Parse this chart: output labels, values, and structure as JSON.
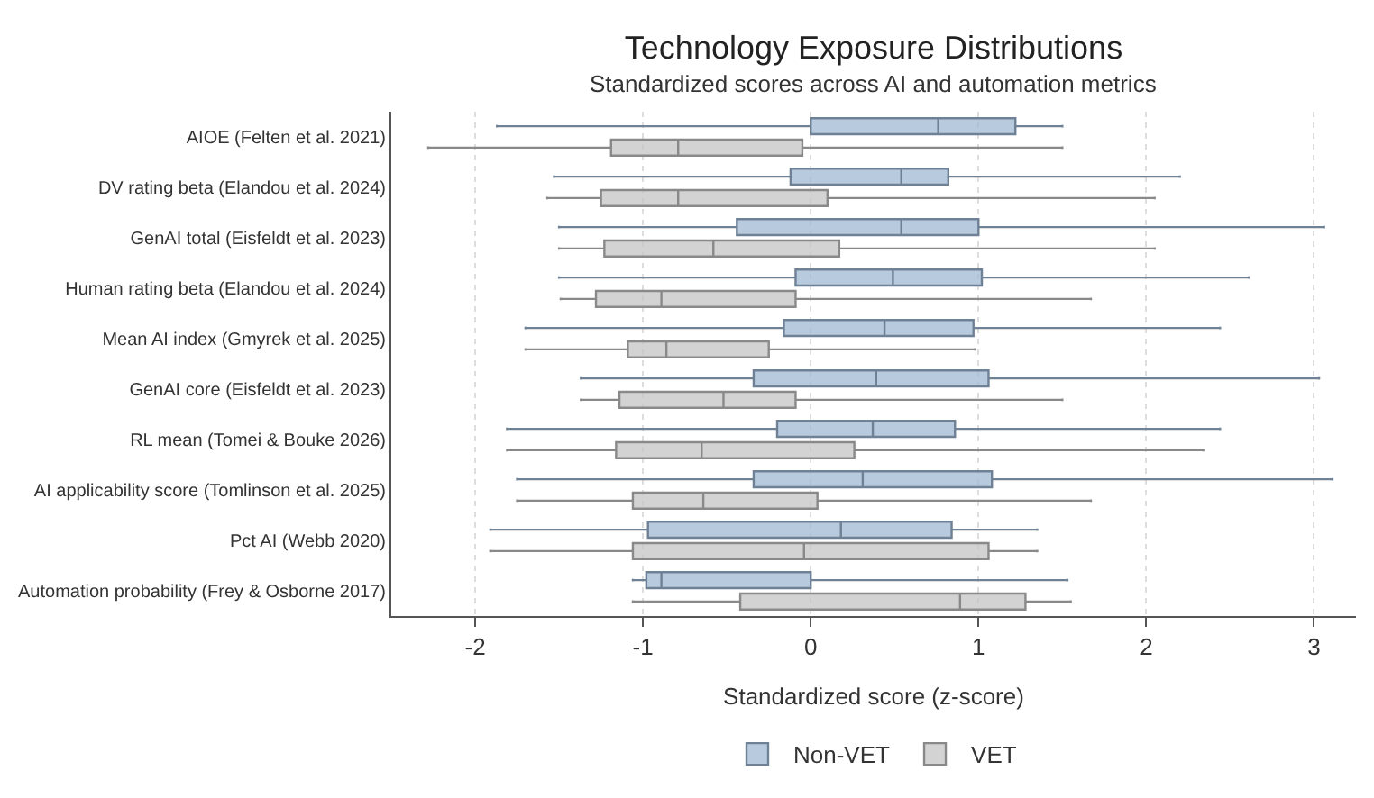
{
  "chart_data": {
    "type": "box",
    "orientation": "horizontal",
    "title": "Technology Exposure Distributions",
    "subtitle": "Standardized scores across AI and automation metrics",
    "xlabel": "Standardized score (z-score)",
    "categories": [
      "AIOE (Felten et al. 2021)",
      "DV rating beta (Elandou et al. 2024)",
      "GenAI total (Eisfeldt et al. 2023)",
      "Human rating beta (Elandou et al. 2024)",
      "Mean AI index (Gmyrek et al. 2025)",
      "GenAI core (Eisfeldt et al. 2023)",
      "RL mean (Tomei & Bouke 2026)",
      "AI applicability score (Tomlinson et al. 2025)",
      "Pct AI (Webb 2020)",
      "Automation probability (Frey & Osborne 2017)"
    ],
    "series": [
      {
        "name": "Non-VET",
        "color": "#9fb8d3",
        "boxes": [
          {
            "low": -1.87,
            "q1": 0.0,
            "median": 0.76,
            "q3": 1.22,
            "high": 1.5
          },
          {
            "low": -1.53,
            "q1": -0.12,
            "median": 0.54,
            "q3": 0.82,
            "high": 2.2
          },
          {
            "low": -1.5,
            "q1": -0.44,
            "median": 0.54,
            "q3": 1.0,
            "high": 3.06
          },
          {
            "low": -1.5,
            "q1": -0.09,
            "median": 0.49,
            "q3": 1.02,
            "high": 2.61
          },
          {
            "low": -1.7,
            "q1": -0.16,
            "median": 0.44,
            "q3": 0.97,
            "high": 2.44
          },
          {
            "low": -1.37,
            "q1": -0.34,
            "median": 0.39,
            "q3": 1.06,
            "high": 3.03
          },
          {
            "low": -1.81,
            "q1": -0.2,
            "median": 0.37,
            "q3": 0.86,
            "high": 2.44
          },
          {
            "low": -1.75,
            "q1": -0.34,
            "median": 0.31,
            "q3": 1.08,
            "high": 3.11
          },
          {
            "low": -1.91,
            "q1": -0.97,
            "median": 0.18,
            "q3": 0.84,
            "high": 1.35
          },
          {
            "low": -1.06,
            "q1": -0.98,
            "median": -0.89,
            "q3": 0.0,
            "high": 1.53
          }
        ]
      },
      {
        "name": "VET",
        "color": "#c4c4c4",
        "boxes": [
          {
            "low": -2.28,
            "q1": -1.19,
            "median": -0.79,
            "q3": -0.05,
            "high": 1.5
          },
          {
            "low": -1.57,
            "q1": -1.25,
            "median": -0.79,
            "q3": 0.1,
            "high": 2.05
          },
          {
            "low": -1.5,
            "q1": -1.23,
            "median": -0.58,
            "q3": 0.17,
            "high": 2.05
          },
          {
            "low": -1.49,
            "q1": -1.28,
            "median": -0.89,
            "q3": -0.09,
            "high": 1.67
          },
          {
            "low": -1.7,
            "q1": -1.09,
            "median": -0.86,
            "q3": -0.25,
            "high": 0.98
          },
          {
            "low": -1.37,
            "q1": -1.14,
            "median": -0.52,
            "q3": -0.09,
            "high": 1.5
          },
          {
            "low": -1.81,
            "q1": -1.16,
            "median": -0.65,
            "q3": 0.26,
            "high": 2.34
          },
          {
            "low": -1.75,
            "q1": -1.06,
            "median": -0.64,
            "q3": 0.04,
            "high": 1.67
          },
          {
            "low": -1.91,
            "q1": -1.06,
            "median": -0.04,
            "q3": 1.06,
            "high": 1.35
          },
          {
            "low": -1.06,
            "q1": -0.42,
            "median": 0.89,
            "q3": 1.28,
            "high": 1.55
          }
        ]
      }
    ],
    "xlim": [
      -2.5,
      3.25
    ],
    "xticks": [
      -2,
      -1,
      0,
      1,
      2,
      3
    ],
    "grid": "x",
    "legend": "bottom"
  }
}
